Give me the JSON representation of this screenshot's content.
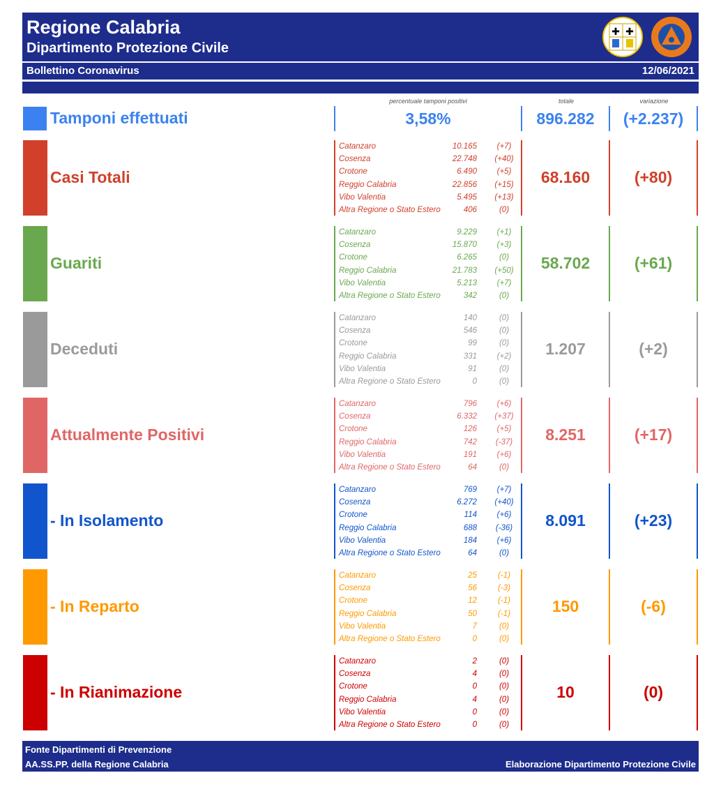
{
  "header": {
    "title": "Regione Calabria",
    "subtitle": "Dipartimento Protezione Civile",
    "pc_logo_text": "PROTEZIONE CIVILE Regione Calabria"
  },
  "subbar": {
    "left": "Bollettino Coronavirus",
    "date": "12/06/2021"
  },
  "column_headers": {
    "percent": "percentuale tamponi positivi",
    "total": "totale",
    "variation": "variazione"
  },
  "tamponi": {
    "label": "Tamponi effettuati",
    "percent": "3,58%",
    "total": "896.282",
    "variation": "(+2.237)",
    "color": "#3b82f0"
  },
  "sections": [
    {
      "label": "Casi Totali",
      "color": "#d0402a",
      "total": "68.160",
      "variation": "(+80)",
      "rows": [
        {
          "prov": "Catanzaro",
          "num": "10.165",
          "var": "(+7)"
        },
        {
          "prov": "Cosenza",
          "num": "22.748",
          "var": "(+40)"
        },
        {
          "prov": "Crotone",
          "num": "6.490",
          "var": "(+5)"
        },
        {
          "prov": "Reggio Calabria",
          "num": "22.856",
          "var": "(+15)"
        },
        {
          "prov": "Vibo Valentia",
          "num": "5.495",
          "var": "(+13)"
        },
        {
          "prov": "Altra Regione o Stato Estero",
          "num": "406",
          "var": "(0)"
        }
      ]
    },
    {
      "label": "Guariti",
      "color": "#6aa84f",
      "total": "58.702",
      "variation": "(+61)",
      "rows": [
        {
          "prov": "Catanzaro",
          "num": "9.229",
          "var": "(+1)"
        },
        {
          "prov": "Cosenza",
          "num": "15.870",
          "var": "(+3)"
        },
        {
          "prov": "Crotone",
          "num": "6.265",
          "var": "(0)"
        },
        {
          "prov": "Reggio Calabria",
          "num": "21.783",
          "var": "(+50)"
        },
        {
          "prov": "Vibo Valentia",
          "num": "5.213",
          "var": "(+7)"
        },
        {
          "prov": "Altra Regione o Stato Estero",
          "num": "342",
          "var": "(0)"
        }
      ]
    },
    {
      "label": "Deceduti",
      "color": "#9a9a9a",
      "total": "1.207",
      "variation": "(+2)",
      "rows": [
        {
          "prov": "Catanzaro",
          "num": "140",
          "var": "(0)"
        },
        {
          "prov": "Cosenza",
          "num": "546",
          "var": "(0)"
        },
        {
          "prov": "Crotone",
          "num": "99",
          "var": "(0)"
        },
        {
          "prov": "Reggio Calabria",
          "num": "331",
          "var": "(+2)"
        },
        {
          "prov": "Vibo Valentia",
          "num": "91",
          "var": "(0)"
        },
        {
          "prov": "Altra Regione o Stato Estero",
          "num": "0",
          "var": "(0)"
        }
      ]
    },
    {
      "label": "Attualmente Positivi",
      "color": "#e06666",
      "total": "8.251",
      "variation": "(+17)",
      "rows": [
        {
          "prov": "Catanzaro",
          "num": "796",
          "var": "(+6)"
        },
        {
          "prov": "Cosenza",
          "num": "6.332",
          "var": "(+37)"
        },
        {
          "prov": "Crotone",
          "num": "126",
          "var": "(+5)"
        },
        {
          "prov": "Reggio Calabria",
          "num": "742",
          "var": "(-37)"
        },
        {
          "prov": "Vibo Valentia",
          "num": "191",
          "var": "(+6)"
        },
        {
          "prov": "Altra Regione o Stato Estero",
          "num": "64",
          "var": "(0)"
        }
      ]
    },
    {
      "label": "- In Isolamento",
      "color": "#1155cc",
      "total": "8.091",
      "variation": "(+23)",
      "rows": [
        {
          "prov": "Catanzaro",
          "num": "769",
          "var": "(+7)"
        },
        {
          "prov": "Cosenza",
          "num": "6.272",
          "var": "(+40)"
        },
        {
          "prov": "Crotone",
          "num": "114",
          "var": "(+6)"
        },
        {
          "prov": "Reggio Calabria",
          "num": "688",
          "var": "(-36)"
        },
        {
          "prov": "Vibo Valentia",
          "num": "184",
          "var": "(+6)"
        },
        {
          "prov": "Altra Regione o Stato Estero",
          "num": "64",
          "var": "(0)"
        }
      ]
    },
    {
      "label": "- In Reparto",
      "color": "#ff9900",
      "total": "150",
      "variation": "(-6)",
      "rows": [
        {
          "prov": "Catanzaro",
          "num": "25",
          "var": "(-1)"
        },
        {
          "prov": "Cosenza",
          "num": "56",
          "var": "(-3)"
        },
        {
          "prov": "Crotone",
          "num": "12",
          "var": "(-1)"
        },
        {
          "prov": "Reggio Calabria",
          "num": "50",
          "var": "(-1)"
        },
        {
          "prov": "Vibo Valentia",
          "num": "7",
          "var": "(0)"
        },
        {
          "prov": "Altra Regione o Stato Estero",
          "num": "0",
          "var": "(0)"
        }
      ]
    },
    {
      "label": "- In Rianimazione",
      "color": "#cc0000",
      "total": "10",
      "variation": "(0)",
      "rows": [
        {
          "prov": "Catanzaro",
          "num": "2",
          "var": "(0)"
        },
        {
          "prov": "Cosenza",
          "num": "4",
          "var": "(0)"
        },
        {
          "prov": "Crotone",
          "num": "0",
          "var": "(0)"
        },
        {
          "prov": "Reggio Calabria",
          "num": "4",
          "var": "(0)"
        },
        {
          "prov": "Vibo Valentia",
          "num": "0",
          "var": "(0)"
        },
        {
          "prov": "Altra Regione o Stato Estero",
          "num": "0",
          "var": "(0)"
        }
      ]
    }
  ],
  "footer": {
    "line1": "Fonte Dipartimenti di Prevenzione",
    "line2": "AA.SS.PP.  della Regione Calabria",
    "right": "Elaborazione Dipartimento Protezione Civile"
  }
}
